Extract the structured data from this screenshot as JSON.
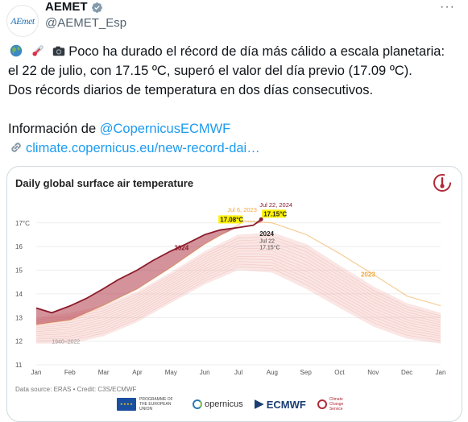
{
  "tweet": {
    "display_name": "AEMET",
    "handle": "@AEMET_Esp",
    "avatar_text": "AEmet",
    "more_label": "···",
    "line1": "Poco ha durado el récord de día más cálido a escala planetaria:",
    "line2": "el 22 de julio, con 17.15 ºC, superó el valor del día previo (17.09 ºC).",
    "line3": "Dos récords diarios de temperatura en dos días consecutivos.",
    "info_prefix": "Información de ",
    "mention": "@CopernicusECMWF",
    "url": "climate.copernicus.eu/new-record-dai…",
    "emojis": [
      "globe-icon",
      "thermometer-icon",
      "camera-icon",
      "link-icon"
    ],
    "colors": {
      "link": "#1d9bf0",
      "verified": "#829aab",
      "muted": "#536471"
    }
  },
  "card": {
    "data_source": "Data source: ERAS • Credit: C3S/ECMWF",
    "logos": {
      "eu": "PROGRAMME OF THE EUROPEAN UNION",
      "copernicus": "opernicus",
      "ecmwf": "ECMWF",
      "ccs": "Climate Change Service"
    }
  },
  "chart_data": {
    "type": "line",
    "title": "Daily global surface air temperature",
    "x_tick_labels": [
      "Jan",
      "Feb",
      "Mar",
      "Apr",
      "May",
      "Jun",
      "Jul",
      "Aug",
      "Sep",
      "Oct",
      "Nov",
      "Dec",
      "Jan"
    ],
    "y_tick_labels": [
      "17°C",
      "16",
      "15",
      "14",
      "13",
      "12",
      "11"
    ],
    "ylim": [
      11,
      17.4
    ],
    "grid": true,
    "colors": {
      "2024": "#8b1a2b",
      "2023": "#f2a640",
      "band": "#f0b8b3",
      "record_fill": "#b03a48",
      "highlight": "#fff200"
    },
    "series": [
      {
        "name": "2024",
        "x": [
          "Jan 1",
          "Jan 15",
          "Feb 1",
          "Feb 15",
          "Mar 1",
          "Mar 15",
          "Apr 1",
          "Apr 15",
          "May 1",
          "May 15",
          "Jun 1",
          "Jun 15",
          "Jul 1",
          "Jul 15",
          "Jul 22"
        ],
        "y": [
          13.4,
          13.2,
          13.5,
          13.8,
          14.2,
          14.6,
          15.0,
          15.4,
          15.8,
          16.1,
          16.5,
          16.7,
          16.8,
          16.9,
          17.15
        ]
      },
      {
        "name": "2023",
        "x": [
          "Jan 1",
          "Feb 1",
          "Mar 1",
          "Apr 1",
          "May 1",
          "Jun 1",
          "Jul 1",
          "Jul 6",
          "Aug 1",
          "Sep 1",
          "Oct 1",
          "Nov 1",
          "Dec 1",
          "Dec 31"
        ],
        "y": [
          12.7,
          12.9,
          13.5,
          14.2,
          15.1,
          16.1,
          16.9,
          17.08,
          17.0,
          16.5,
          15.7,
          14.8,
          13.9,
          13.5
        ]
      },
      {
        "name": "1940-2022",
        "x": [
          "Jan 1",
          "Feb 1",
          "Mar 1",
          "Apr 1",
          "May 1",
          "Jun 1",
          "Jul 1",
          "Aug 1",
          "Sep 1",
          "Oct 1",
          "Nov 1",
          "Dec 1",
          "Dec 31"
        ],
        "y_low": [
          11.9,
          11.9,
          12.2,
          12.8,
          13.6,
          14.4,
          15.0,
          14.9,
          14.2,
          13.4,
          12.6,
          12.1,
          11.9
        ],
        "y_high": [
          13.0,
          13.2,
          13.5,
          14.1,
          14.9,
          15.8,
          16.5,
          16.6,
          16.1,
          15.2,
          14.3,
          13.6,
          13.2
        ]
      }
    ],
    "annotations": {
      "jul6_date": "Jul 6, 2023",
      "jul6_value": "17.08°C",
      "jul22_date": "Jul 22, 2024",
      "jul22_value": "17.15°C",
      "label_2024_upper": "2024",
      "label_2024_lower": "2024",
      "jul22_small": "Jul 22",
      "jul22_small_value": "17.15°C",
      "label_2023": "2023",
      "label_range": "1940–2022"
    }
  }
}
